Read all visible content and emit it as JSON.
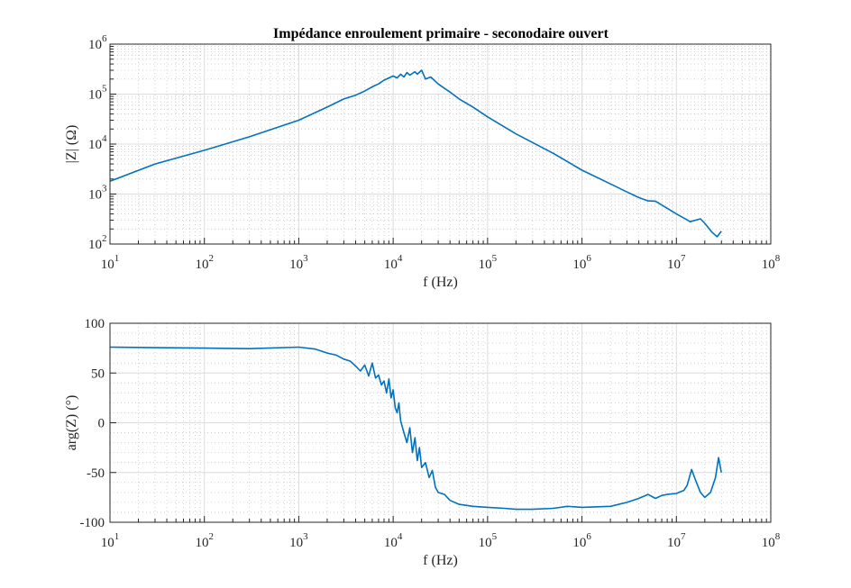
{
  "chart_data": [
    {
      "type": "line",
      "title": "Impédance enroulement primaire - seconodaire ouvert",
      "xlabel": "f (Hz)",
      "ylabel": "|Z| (Ω)",
      "xscale": "log",
      "yscale": "log",
      "xlim": [
        10,
        100000000
      ],
      "ylim": [
        100,
        1000000
      ],
      "xticks": [
        10,
        100,
        1000,
        10000,
        100000,
        1000000,
        10000000,
        100000000
      ],
      "xtick_labels": [
        [
          "10",
          "1"
        ],
        [
          "10",
          "2"
        ],
        [
          "10",
          "3"
        ],
        [
          "10",
          "4"
        ],
        [
          "10",
          "5"
        ],
        [
          "10",
          "6"
        ],
        [
          "10",
          "7"
        ],
        [
          "10",
          "8"
        ]
      ],
      "yticks": [
        100,
        1000,
        10000,
        100000,
        1000000
      ],
      "ytick_labels": [
        [
          "10",
          "2"
        ],
        [
          "10",
          "3"
        ],
        [
          "10",
          "4"
        ],
        [
          "10",
          "5"
        ],
        [
          "10",
          "6"
        ]
      ],
      "grid": true,
      "color": "#0072BD",
      "series": [
        {
          "name": "|Z|",
          "x": [
            10,
            30,
            100,
            300,
            1000,
            2000,
            3000,
            4000,
            5000,
            6000,
            7000,
            8000,
            9000,
            10000,
            11000,
            12000,
            13000,
            14000,
            15000,
            16000,
            17000,
            18000,
            20000,
            22000,
            25000,
            28000,
            30000,
            35000,
            40000,
            50000,
            70000,
            100000,
            200000,
            500000,
            1000000,
            2000000,
            3000000,
            4000000,
            5000000,
            6000000,
            8000000,
            10000000,
            12000000,
            14000000,
            16000000,
            18000000,
            20000000,
            24000000,
            27000000,
            30000000
          ],
          "y": [
            1800,
            4000,
            7500,
            14000,
            30000,
            55000,
            80000,
            95000,
            115000,
            140000,
            160000,
            190000,
            210000,
            230000,
            210000,
            250000,
            220000,
            270000,
            240000,
            260000,
            280000,
            250000,
            300000,
            200000,
            220000,
            180000,
            160000,
            130000,
            110000,
            80000,
            55000,
            35000,
            16000,
            6500,
            3000,
            1600,
            1100,
            850,
            730,
            720,
            520,
            400,
            330,
            280,
            300,
            320,
            260,
            170,
            140,
            180
          ]
        }
      ]
    },
    {
      "type": "line",
      "title": "",
      "xlabel": "f (Hz)",
      "ylabel": "arg(Z) (°)",
      "xscale": "log",
      "yscale": "linear",
      "xlim": [
        10,
        100000000
      ],
      "ylim": [
        -100,
        100
      ],
      "xticks": [
        10,
        100,
        1000,
        10000,
        100000,
        1000000,
        10000000,
        100000000
      ],
      "xtick_labels": [
        [
          "10",
          "1"
        ],
        [
          "10",
          "2"
        ],
        [
          "10",
          "3"
        ],
        [
          "10",
          "4"
        ],
        [
          "10",
          "5"
        ],
        [
          "10",
          "6"
        ],
        [
          "10",
          "7"
        ],
        [
          "10",
          "8"
        ]
      ],
      "yticks": [
        -100,
        -50,
        0,
        50,
        100
      ],
      "ytick_labels": [
        "-100",
        "-50",
        "0",
        "50",
        "100"
      ],
      "grid": true,
      "color": "#0072BD",
      "series": [
        {
          "name": "arg(Z)",
          "x": [
            10,
            30,
            100,
            300,
            1000,
            1500,
            2000,
            2500,
            3000,
            3500,
            4000,
            4500,
            5000,
            5500,
            6000,
            6500,
            7000,
            7500,
            8000,
            8500,
            9000,
            9500,
            10000,
            10500,
            11000,
            11500,
            12000,
            13000,
            14000,
            15000,
            16000,
            17000,
            18000,
            19000,
            20000,
            22000,
            24000,
            26000,
            28000,
            30000,
            35000,
            40000,
            50000,
            70000,
            100000,
            150000,
            200000,
            300000,
            500000,
            700000,
            1000000,
            2000000,
            3000000,
            4000000,
            5000000,
            6000000,
            7000000,
            8000000,
            10000000,
            12000000,
            13000000,
            14500000,
            16000000,
            18000000,
            20000000,
            23000000,
            26000000,
            28000000,
            30000000
          ],
          "y": [
            76,
            75.5,
            75,
            74.5,
            76,
            74,
            70,
            68,
            64,
            62,
            57,
            52,
            58,
            47,
            60,
            45,
            48,
            38,
            42,
            30,
            44,
            25,
            33,
            15,
            10,
            20,
            2,
            -10,
            -20,
            -5,
            -30,
            -15,
            -38,
            -25,
            -45,
            -40,
            -55,
            -48,
            -65,
            -70,
            -72,
            -78,
            -82,
            -84,
            -85,
            -86,
            -87,
            -87,
            -86,
            -84,
            -85,
            -84,
            -80,
            -76,
            -72,
            -76,
            -73,
            -72,
            -71,
            -68,
            -63,
            -47,
            -58,
            -70,
            -75,
            -70,
            -55,
            -35,
            -50
          ]
        }
      ]
    }
  ]
}
